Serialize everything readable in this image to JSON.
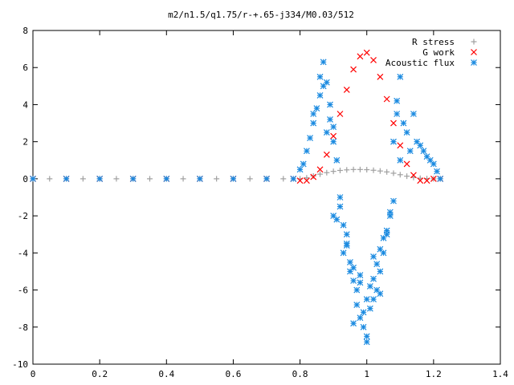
{
  "chart_data": {
    "type": "scatter",
    "title": "m2/n1.5/q1.75/r-+.65-j334/M0.03/512",
    "xlabel": "",
    "ylabel": "",
    "xlim": [
      0,
      1.4
    ],
    "ylim": [
      -10,
      8
    ],
    "xticks": [
      "0",
      "0.2",
      "0.4",
      "0.6",
      "0.8",
      "1",
      "1.2",
      "1.4"
    ],
    "yticks": [
      "-10",
      "-8",
      "-6",
      "-4",
      "-2",
      "0",
      "2",
      "4",
      "6",
      "8"
    ],
    "grid": false,
    "legend_position": "top-right",
    "series": [
      {
        "name": "R stress",
        "marker": "+",
        "color": "#a0a0a0",
        "x": [
          0.0,
          0.05,
          0.1,
          0.15,
          0.2,
          0.25,
          0.3,
          0.35,
          0.4,
          0.45,
          0.5,
          0.55,
          0.6,
          0.65,
          0.7,
          0.75,
          0.8,
          0.82,
          0.84,
          0.86,
          0.88,
          0.9,
          0.92,
          0.94,
          0.96,
          0.98,
          1.0,
          1.02,
          1.04,
          1.06,
          1.08,
          1.1,
          1.12,
          1.14,
          1.16,
          1.18,
          1.2,
          1.22
        ],
        "y": [
          0,
          0,
          0,
          0,
          0,
          0,
          0,
          0,
          0,
          0,
          0,
          0,
          0,
          0,
          0,
          0,
          0,
          0.05,
          0.15,
          0.25,
          0.33,
          0.4,
          0.45,
          0.48,
          0.5,
          0.5,
          0.49,
          0.46,
          0.42,
          0.37,
          0.3,
          0.22,
          0.14,
          0.07,
          0.03,
          0.01,
          0,
          0
        ]
      },
      {
        "name": "G work",
        "marker": "x",
        "color": "#ff0000",
        "x": [
          0.0,
          0.1,
          0.2,
          0.3,
          0.4,
          0.5,
          0.6,
          0.7,
          0.78,
          0.8,
          0.82,
          0.84,
          0.86,
          0.88,
          0.9,
          0.92,
          0.94,
          0.96,
          0.98,
          1.0,
          1.02,
          1.04,
          1.06,
          1.08,
          1.1,
          1.12,
          1.14,
          1.16,
          1.18,
          1.2,
          1.22
        ],
        "y": [
          0,
          0,
          0,
          0,
          0,
          0,
          0,
          0,
          0,
          -0.1,
          -0.1,
          0.1,
          0.5,
          1.3,
          2.3,
          3.5,
          4.8,
          5.9,
          6.6,
          6.8,
          6.4,
          5.5,
          4.3,
          3.0,
          1.8,
          0.8,
          0.2,
          -0.1,
          -0.1,
          0,
          0
        ]
      },
      {
        "name": "Acoustic flux",
        "marker": "*",
        "color": "#1a8ae0",
        "x": [
          0.0,
          0.1,
          0.2,
          0.3,
          0.4,
          0.5,
          0.6,
          0.7,
          0.78,
          0.8,
          0.81,
          0.82,
          0.83,
          0.84,
          0.85,
          0.86,
          0.87,
          0.88,
          0.89,
          0.9,
          0.91,
          0.92,
          0.93,
          0.94,
          0.95,
          0.96,
          0.97,
          0.98,
          0.99,
          1.0,
          1.01,
          1.02,
          1.03,
          1.04,
          1.05,
          1.06,
          1.07,
          1.08,
          1.09,
          1.1,
          1.11,
          1.12,
          1.13,
          1.14,
          1.15,
          1.16,
          1.17,
          1.18,
          1.19,
          1.2,
          1.21,
          1.22,
          0.84,
          0.86,
          0.88,
          0.9,
          0.92,
          0.94,
          0.96,
          0.98,
          1.0,
          1.02,
          1.04,
          1.06,
          1.08,
          1.1,
          0.87,
          0.89,
          0.91,
          0.93,
          0.95,
          0.97,
          0.99,
          1.01,
          1.03,
          1.05,
          1.07,
          1.09,
          0.9,
          0.94,
          0.98,
          1.02,
          0.96,
          1.0,
          1.04
        ],
        "y": [
          0,
          0,
          0,
          0,
          0,
          0,
          0,
          0,
          0,
          0.5,
          0.8,
          1.5,
          2.2,
          3.0,
          3.8,
          5.5,
          6.3,
          5.2,
          4.0,
          2.0,
          1.0,
          -1.5,
          -2.5,
          -3.5,
          -4.5,
          -5.5,
          -6.0,
          -7.5,
          -8.0,
          -8.5,
          -7.0,
          -6.5,
          -6.0,
          -5.0,
          -4.0,
          -3.0,
          -2.0,
          2.0,
          3.5,
          5.5,
          3.0,
          2.5,
          1.5,
          3.5,
          2.0,
          1.8,
          1.5,
          1.2,
          1.0,
          0.8,
          0.4,
          0.0,
          3.5,
          4.5,
          2.5,
          -2.0,
          -1.0,
          -3.0,
          -4.8,
          -5.2,
          -6.5,
          -4.2,
          -3.8,
          -2.8,
          -1.2,
          1.0,
          5.0,
          3.2,
          -2.2,
          -4.0,
          -5.0,
          -6.8,
          -7.2,
          -5.8,
          -4.6,
          -3.2,
          -1.8,
          4.2,
          2.8,
          -3.6,
          -5.6,
          -5.4,
          -7.8,
          -8.8,
          -6.2
        ]
      }
    ]
  }
}
